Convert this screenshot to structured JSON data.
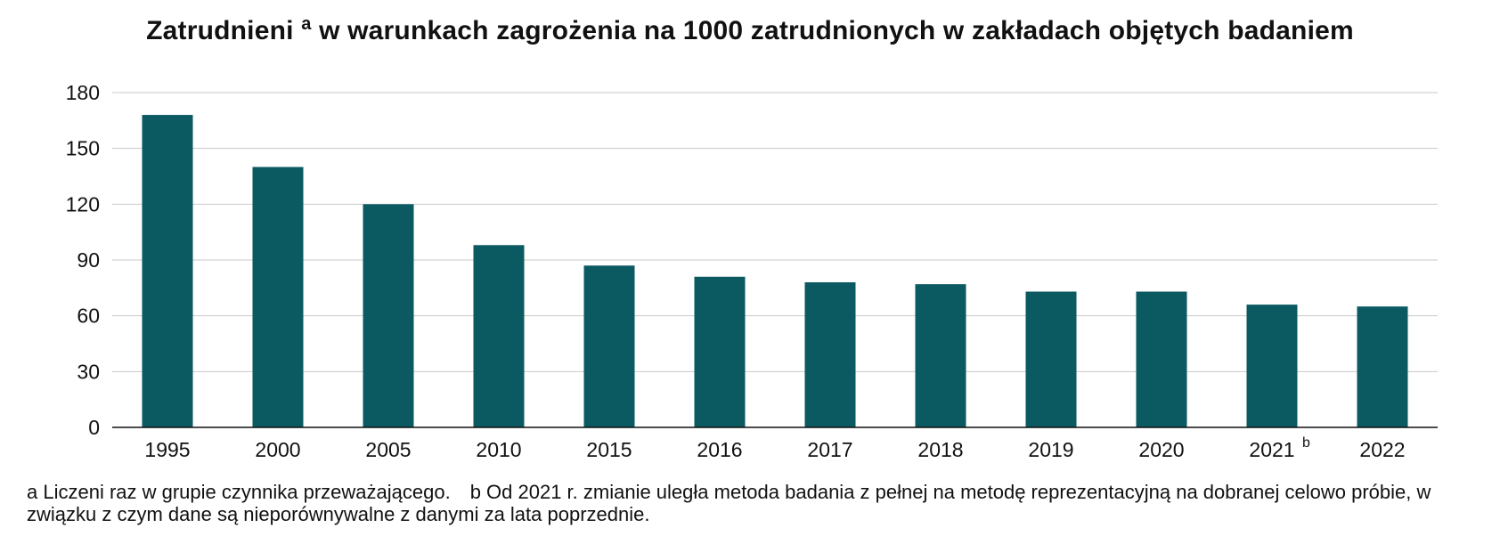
{
  "chart_data": {
    "type": "bar",
    "title": "Zatrudnieni",
    "title_sup": "a",
    "title_rest": "w warunkach zagrożenia na 1000 zatrudnionych w zakładach objętych badaniem",
    "categories": [
      "1995",
      "2000",
      "2005",
      "2010",
      "2015",
      "2016",
      "2017",
      "2018",
      "2019",
      "2020",
      "2021",
      "2022"
    ],
    "category_superscripts": {
      "2021": "b"
    },
    "values": [
      168,
      140,
      120,
      98,
      87,
      81,
      78,
      77,
      73,
      73,
      66,
      65
    ],
    "ylim": [
      0,
      180
    ],
    "yticks": [
      0,
      30,
      60,
      90,
      120,
      150,
      180
    ],
    "grid": true,
    "bar_color": "#0b5a62"
  },
  "notes": {
    "a": "a Liczeni raz w grupie czynnika przeważającego.",
    "b": "b Od 2021 r. zmianie uległa metoda badania z pełnej na metodę reprezentacyjną na dobranej celowo próbie, w związku z czym dane są nieporównywalne z danymi za lata poprzednie."
  }
}
